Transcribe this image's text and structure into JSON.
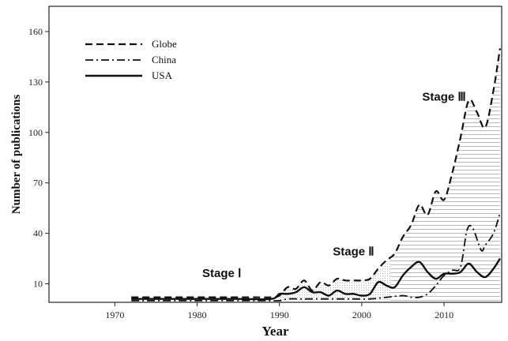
{
  "chart_data": {
    "type": "line",
    "xlabel": "Year",
    "ylabel": "Number of publications",
    "xlim": [
      1962,
      2017
    ],
    "ylim": [
      -1,
      175
    ],
    "xticks": [
      "1970",
      "1980",
      "1990",
      "2000",
      "2010"
    ],
    "yticks": [
      "10",
      "40",
      "70",
      "100",
      "130",
      "160"
    ],
    "grid": false,
    "legend_position": "top-left",
    "series": [
      {
        "name": "Globe",
        "style": "dashed",
        "points": [
          [
            1972,
            2
          ],
          [
            1975,
            2
          ],
          [
            1978,
            2
          ],
          [
            1981,
            2
          ],
          [
            1984,
            2
          ],
          [
            1987,
            2
          ],
          [
            1989,
            2
          ],
          [
            1990,
            3
          ],
          [
            1991,
            8
          ],
          [
            1992,
            7
          ],
          [
            1993,
            12
          ],
          [
            1994,
            6
          ],
          [
            1995,
            11
          ],
          [
            1996,
            9
          ],
          [
            1997,
            13
          ],
          [
            1998,
            12
          ],
          [
            1999,
            12
          ],
          [
            2000,
            12
          ],
          [
            2001,
            13
          ],
          [
            2002,
            19
          ],
          [
            2003,
            24
          ],
          [
            2004,
            28
          ],
          [
            2005,
            38
          ],
          [
            2006,
            45
          ],
          [
            2007,
            57
          ],
          [
            2008,
            51
          ],
          [
            2009,
            65
          ],
          [
            2010,
            60
          ],
          [
            2011,
            76
          ],
          [
            2012,
            97
          ],
          [
            2013,
            119
          ],
          [
            2014,
            112
          ],
          [
            2015,
            103
          ],
          [
            2016,
            125
          ],
          [
            2016.8,
            150
          ]
        ]
      },
      {
        "name": "China",
        "style": "dash-dot",
        "points": [
          [
            1972,
            0
          ],
          [
            1980,
            0
          ],
          [
            1988,
            0
          ],
          [
            1990,
            0
          ],
          [
            1991,
            1
          ],
          [
            1993,
            1
          ],
          [
            1995,
            1
          ],
          [
            1997,
            1
          ],
          [
            1999,
            1
          ],
          [
            2001,
            1
          ],
          [
            2003,
            2
          ],
          [
            2005,
            3
          ],
          [
            2006,
            2
          ],
          [
            2007,
            2
          ],
          [
            2008,
            4
          ],
          [
            2009,
            9
          ],
          [
            2010,
            15
          ],
          [
            2011,
            18
          ],
          [
            2012,
            20
          ],
          [
            2012.8,
            42
          ],
          [
            2013.5,
            43
          ],
          [
            2014.5,
            30
          ],
          [
            2015,
            33
          ],
          [
            2016,
            40
          ],
          [
            2016.8,
            52
          ]
        ]
      },
      {
        "name": "USA",
        "style": "solid",
        "points": [
          [
            1972,
            1
          ],
          [
            1975,
            1
          ],
          [
            1980,
            1
          ],
          [
            1985,
            1
          ],
          [
            1989,
            1
          ],
          [
            1990,
            4
          ],
          [
            1991,
            4
          ],
          [
            1992,
            5
          ],
          [
            1993,
            8
          ],
          [
            1994,
            5
          ],
          [
            1995,
            5
          ],
          [
            1996,
            3
          ],
          [
            1997,
            6
          ],
          [
            1998,
            4
          ],
          [
            1999,
            4
          ],
          [
            2000,
            3
          ],
          [
            2001,
            4
          ],
          [
            2002,
            11
          ],
          [
            2003,
            9
          ],
          [
            2004,
            8
          ],
          [
            2005,
            15
          ],
          [
            2006,
            20
          ],
          [
            2007,
            23
          ],
          [
            2008,
            17
          ],
          [
            2009,
            13
          ],
          [
            2010,
            16
          ],
          [
            2011,
            16
          ],
          [
            2012,
            17
          ],
          [
            2013,
            22
          ],
          [
            2014,
            17
          ],
          [
            2015,
            14
          ],
          [
            2016,
            19
          ],
          [
            2016.8,
            25
          ]
        ]
      }
    ],
    "annotations": [
      {
        "text": "Stage Ⅰ",
        "x": 1983,
        "y": 14
      },
      {
        "text": "Stage Ⅱ",
        "x": 1999,
        "y": 27
      },
      {
        "text": "Stage Ⅲ",
        "x": 2010,
        "y": 119
      }
    ]
  }
}
